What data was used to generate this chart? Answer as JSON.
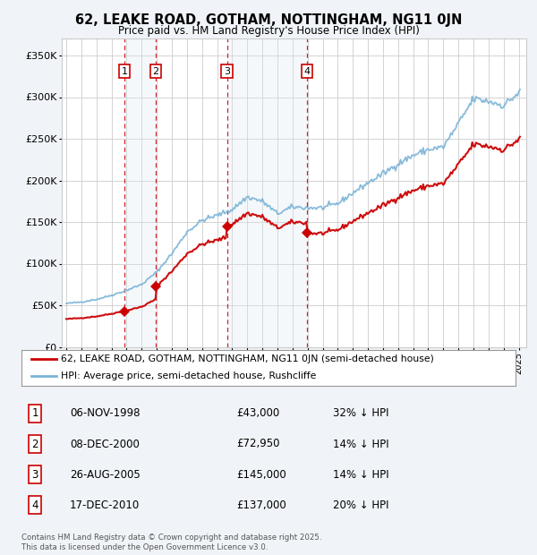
{
  "title": "62, LEAKE ROAD, GOTHAM, NOTTINGHAM, NG11 0JN",
  "subtitle": "Price paid vs. HM Land Registry's House Price Index (HPI)",
  "sale_dates": [
    "1998-11-06",
    "2000-12-08",
    "2005-08-26",
    "2010-12-17"
  ],
  "sale_prices": [
    43000,
    72950,
    145000,
    137000
  ],
  "sale_labels": [
    "1",
    "2",
    "3",
    "4"
  ],
  "sale_hpi_diff": [
    "32% ↓ HPI",
    "14% ↓ HPI",
    "14% ↓ HPI",
    "20% ↓ HPI"
  ],
  "sale_dates_str": [
    "06-NOV-1998",
    "08-DEC-2000",
    "26-AUG-2005",
    "17-DEC-2010"
  ],
  "sale_prices_str": [
    "£43,000",
    "£72,950",
    "£145,000",
    "£137,000"
  ],
  "property_color": "#cc0000",
  "hpi_color_line": "#7ab4d8",
  "background_color": "#f0f4f8",
  "plot_bg": "#ffffff",
  "grid_color": "#cccccc",
  "shade_color": "#dce8f5",
  "legend_property": "62, LEAKE ROAD, GOTHAM, NOTTINGHAM, NG11 0JN (semi-detached house)",
  "legend_hpi": "HPI: Average price, semi-detached house, Rushcliffe",
  "footer": "Contains HM Land Registry data © Crown copyright and database right 2025.\nThis data is licensed under the Open Government Licence v3.0.",
  "ylim": [
    0,
    370000
  ],
  "yticks": [
    0,
    50000,
    100000,
    150000,
    200000,
    250000,
    300000,
    350000
  ],
  "ytick_labels": [
    "£0",
    "£50K",
    "£100K",
    "£150K",
    "£200K",
    "£250K",
    "£300K",
    "£350K"
  ],
  "xstart_year": 1995,
  "xend_year": 2025,
  "hpi_anchors": {
    "1995": 52000,
    "1996": 54000,
    "1997": 57000,
    "1998": 62000,
    "1999": 68000,
    "2000": 75000,
    "2001": 90000,
    "2002": 112000,
    "2003": 138000,
    "2004": 152000,
    "2005": 158000,
    "2006": 165000,
    "2007": 180000,
    "2008": 175000,
    "2009": 160000,
    "2010": 168000,
    "2011": 167000,
    "2012": 167000,
    "2013": 172000,
    "2014": 185000,
    "2015": 197000,
    "2016": 208000,
    "2017": 220000,
    "2018": 230000,
    "2019": 237000,
    "2020": 240000,
    "2021": 268000,
    "2022": 298000,
    "2023": 295000,
    "2024": 290000,
    "2025": 305000
  }
}
